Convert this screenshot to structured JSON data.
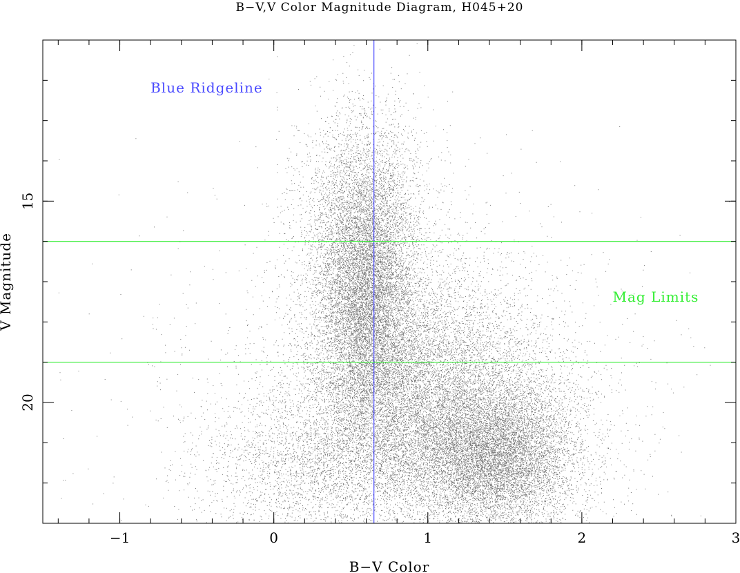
{
  "chart_data": {
    "type": "scatter",
    "title": "B−V,V Color Magnitude Diagram, H045+20",
    "xlabel": "B−V Color",
    "ylabel": "V Magnitude",
    "xlim": [
      -1.5,
      3
    ],
    "ylim": [
      23,
      11
    ],
    "y_inverted": true,
    "x_ticks": [
      {
        "value": -1,
        "label": "−1"
      },
      {
        "value": 0,
        "label": "0"
      },
      {
        "value": 1,
        "label": "1"
      },
      {
        "value": 2,
        "label": "2"
      },
      {
        "value": 3,
        "label": "3"
      }
    ],
    "y_ticks": [
      {
        "value": 15,
        "label": "15"
      },
      {
        "value": 20,
        "label": "20"
      }
    ],
    "x_minor_step": 0.2,
    "y_minor_step": 1,
    "grid": false,
    "scatter_clusters": [
      {
        "cx": 0.6,
        "cy": 17.3,
        "sx": 0.16,
        "sy": 1.6,
        "n": 9000
      },
      {
        "cx": 0.58,
        "cy": 15.0,
        "sx": 0.22,
        "sy": 1.3,
        "n": 2500
      },
      {
        "cx": 0.95,
        "cy": 19.6,
        "sx": 0.42,
        "sy": 1.6,
        "n": 9000
      },
      {
        "cx": 1.45,
        "cy": 21.4,
        "sx": 0.26,
        "sy": 0.9,
        "n": 7000
      },
      {
        "cx": 1.2,
        "cy": 20.8,
        "sx": 0.45,
        "sy": 1.2,
        "n": 4000
      },
      {
        "cx": 0.3,
        "cy": 21.5,
        "sx": 0.4,
        "sy": 0.9,
        "n": 2500
      },
      {
        "cx": 0.7,
        "cy": 20.0,
        "sx": 0.9,
        "sy": 2.8,
        "n": 1500
      }
    ],
    "reference_lines": [
      {
        "orientation": "vertical",
        "value": 0.65,
        "color": "#4a4aff",
        "label": "Blue Ridgeline",
        "label_x": -0.8,
        "label_y": 12.3
      },
      {
        "orientation": "horizontal",
        "value": 16.0,
        "color": "#33ee33"
      },
      {
        "orientation": "horizontal",
        "value": 19.0,
        "color": "#33ee33",
        "label": "Mag Limits",
        "label_x": 2.2,
        "label_y": 17.5
      }
    ],
    "marker_color": "#000000"
  }
}
